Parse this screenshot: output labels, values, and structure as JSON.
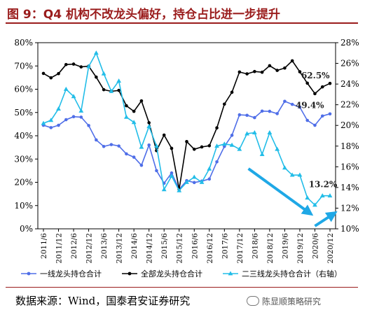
{
  "title": "图 9：Q4 机构不改龙头偏好，持仓占比进一步提升",
  "source": "数据来源：Wind，国泰君安证券研究",
  "watermark": "陈显顺策略研究",
  "chart_data": {
    "type": "line",
    "categories": [
      "2011/6",
      "2011/9",
      "2011/12",
      "2012/3",
      "2012/6",
      "2012/9",
      "2012/12",
      "2013/3",
      "2013/6",
      "2013/9",
      "2013/12",
      "2014/3",
      "2014/6",
      "2014/9",
      "2014/12",
      "2015/3",
      "2015/6",
      "2015/9",
      "2015/12",
      "2016/3",
      "2016/6",
      "2016/9",
      "2016/12",
      "2017/3",
      "2017/6",
      "2017/9",
      "2017/12",
      "2018/3",
      "2018/6",
      "2018/9",
      "2018/12",
      "2019/3",
      "2019/6",
      "2019/9",
      "2019/12",
      "2020/3",
      "2020/6",
      "2020/9",
      "2020/12"
    ],
    "tick_labels": [
      "2011/6",
      "2011/12",
      "2012/6",
      "2012/12",
      "2013/6",
      "2013/12",
      "2014/6",
      "2014/12",
      "2015/6",
      "2015/12",
      "2016/6",
      "2016/12",
      "2017/6",
      "2017/12",
      "2018/6",
      "2018/12",
      "2019/6",
      "2019/12",
      "2020/6",
      "2020/12"
    ],
    "series": [
      {
        "name": "一线龙头持仓合计",
        "axis": "left",
        "color": "#4f6ee8",
        "marker": "circle",
        "values": [
          44.5,
          43.5,
          44.5,
          46.9,
          48.2,
          48.0,
          44.4,
          38.2,
          35.4,
          36.2,
          35.6,
          32.2,
          30.8,
          27.3,
          36.0,
          25.0,
          19.6,
          24.0,
          17.0,
          20.7,
          19.9,
          20.5,
          21.4,
          28.8,
          35.4,
          40.2,
          49.0,
          48.8,
          47.8,
          50.6,
          50.5,
          49.5,
          54.8,
          53.5,
          52.3,
          46.6,
          44.5,
          48.5,
          49.4
        ]
      },
      {
        "name": "全部龙头持仓合计",
        "axis": "left",
        "color": "#000000",
        "marker": "circle",
        "values": [
          66.8,
          64.9,
          66.7,
          70.6,
          70.8,
          69.6,
          69.9,
          65.2,
          59.8,
          59.1,
          59.5,
          52.9,
          50.5,
          55.0,
          45.6,
          33.6,
          40.3,
          34.6,
          17.0,
          37.5,
          34.2,
          35.2,
          35.7,
          43.4,
          53.6,
          58.7,
          67.4,
          66.6,
          67.6,
          67.3,
          70.1,
          68.1,
          69.1,
          72.2,
          67.5,
          62.6,
          58.1,
          61.0,
          62.5
        ]
      },
      {
        "name": "二三线龙头持仓合计（右轴）",
        "axis": "right",
        "color": "#22bde8",
        "marker": "triangle",
        "values": [
          20.2,
          20.5,
          21.6,
          23.5,
          22.8,
          21.4,
          25.7,
          27.0,
          25.0,
          23.3,
          24.3,
          20.8,
          20.3,
          17.9,
          19.9,
          18.0,
          13.8,
          15.1,
          13.7,
          14.5,
          15.0,
          14.5,
          15.8,
          18.0,
          18.2,
          18.1,
          17.7,
          19.2,
          19.3,
          17.2,
          19.3,
          17.7,
          15.9,
          15.2,
          15.2,
          13.0,
          12.3,
          13.2,
          13.2
        ]
      }
    ],
    "left_axis": {
      "ylim": [
        0,
        80
      ],
      "ticks": [
        "0%",
        "10%",
        "20%",
        "30%",
        "40%",
        "50%",
        "60%",
        "70%",
        "80%"
      ]
    },
    "right_axis": {
      "ylim": [
        10,
        28
      ],
      "ticks": [
        "10%",
        "12%",
        "14%",
        "16%",
        "18%",
        "20%",
        "22%",
        "24%",
        "26%",
        "28%"
      ]
    },
    "annotations": [
      "62.5%",
      "49.4%",
      "13.2%"
    ],
    "legend": [
      "一线龙头持仓合计",
      "全部龙头持仓合计",
      "二三线龙头持仓合计（右轴）"
    ],
    "legend_position": "bottom",
    "grid": false
  }
}
